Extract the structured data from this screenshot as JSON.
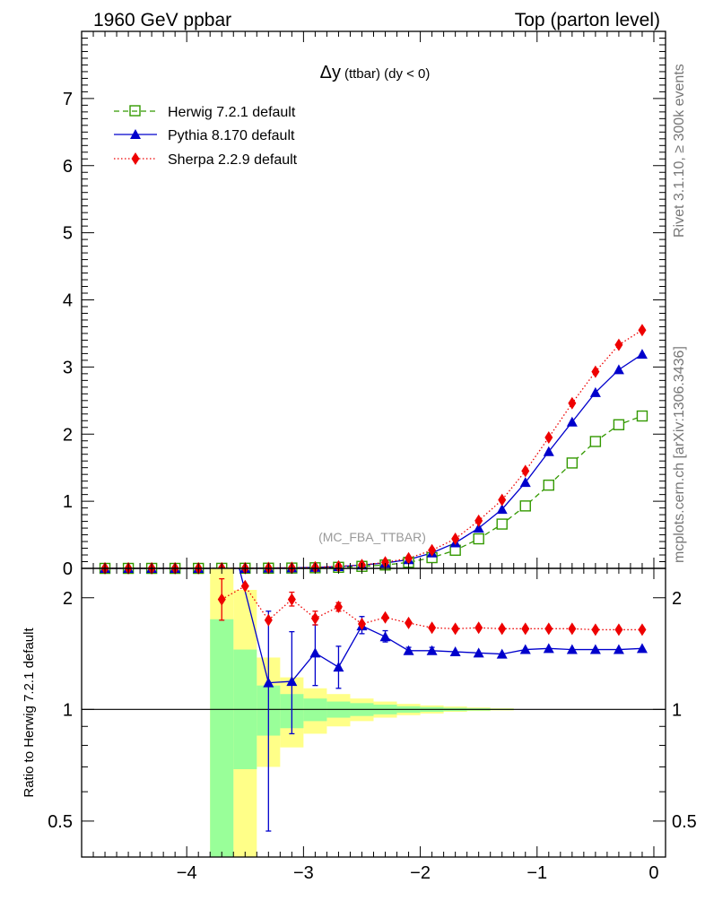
{
  "header": {
    "left": "1960 GeV ppbar",
    "right": "Top (parton level)"
  },
  "side_labels": {
    "rivet": "Rivet 3.1.10, ≥ 300k events",
    "mcplots": "mcplots.cern.ch [arXiv:1306.3436]"
  },
  "chart_data": [
    {
      "type": "line",
      "panel": "main",
      "title": "Δy (ttbar) (dy < 0)",
      "title_main": "Δy",
      "title_sub": "(ttbar) (dy < 0)",
      "watermark": "(MC_FBA_TTBAR)",
      "xlim": [
        -4.9,
        0.1
      ],
      "ylim": [
        0,
        8
      ],
      "ytick_labels": [
        "0",
        "1",
        "2",
        "3",
        "4",
        "5",
        "6",
        "7"
      ],
      "xlabel": "",
      "ylabel": "",
      "legend_position": "top-left",
      "x": [
        -4.7,
        -4.5,
        -4.3,
        -4.1,
        -3.9,
        -3.7,
        -3.5,
        -3.3,
        -3.1,
        -2.9,
        -2.7,
        -2.5,
        -2.3,
        -2.1,
        -1.9,
        -1.7,
        -1.5,
        -1.3,
        -1.1,
        -0.9,
        -0.7,
        -0.5,
        -0.3,
        -0.1
      ],
      "series": [
        {
          "name": "Herwig 7.2.1 default",
          "color": "#339900",
          "marker": "open-square",
          "dash": "dashed",
          "values": [
            0,
            0,
            0,
            0,
            0,
            0.001,
            0.002,
            0.003,
            0.005,
            0.009,
            0.016,
            0.03,
            0.05,
            0.09,
            0.16,
            0.27,
            0.44,
            0.66,
            0.93,
            1.24,
            1.57,
            1.89,
            2.14,
            2.27
          ]
        },
        {
          "name": "Pythia 8.170 default",
          "color": "#0000cc",
          "marker": "filled-triangle",
          "dash": "solid",
          "values": [
            0,
            0,
            0,
            0,
            0,
            0,
            0,
            0.005,
            0.008,
            0.015,
            0.026,
            0.05,
            0.08,
            0.13,
            0.23,
            0.38,
            0.6,
            0.88,
            1.28,
            1.74,
            2.18,
            2.62,
            2.96,
            3.19
          ]
        },
        {
          "name": "Sherpa 2.2.9 default",
          "color": "#ee0000",
          "marker": "filled-diamond",
          "dash": "dotted",
          "values": [
            0.001,
            0.001,
            0.001,
            0.001,
            0.001,
            0.002,
            0.004,
            0.006,
            0.009,
            0.016,
            0.03,
            0.05,
            0.09,
            0.15,
            0.27,
            0.44,
            0.71,
            1.02,
            1.45,
            1.95,
            2.46,
            2.93,
            3.33,
            3.55
          ]
        }
      ]
    },
    {
      "type": "line",
      "panel": "ratio",
      "ylabel": "Ratio to Herwig 7.2.1 default",
      "xlim": [
        -4.9,
        0.1
      ],
      "ylim": [
        0.4,
        2.4
      ],
      "yscale": "log",
      "ytick_labels": [
        "0.5",
        "1",
        "2"
      ],
      "xtick_labels": [
        "−4",
        "−3",
        "−2",
        "−1",
        "0"
      ],
      "reference_line": 1,
      "band_edges": [
        -3.8,
        -3.6,
        -3.4,
        -3.2,
        -3.0,
        -2.8,
        -2.6,
        -2.4,
        -2.2,
        -2.0,
        -1.8,
        -1.6,
        -1.4,
        -1.2
      ],
      "band_inner_lo": [
        0.0,
        0.69,
        0.85,
        0.89,
        0.93,
        0.95,
        0.96,
        0.97,
        0.98,
        0.985,
        0.99,
        0.993,
        0.996
      ],
      "band_inner_hi": [
        1.75,
        1.45,
        1.16,
        1.1,
        1.07,
        1.05,
        1.04,
        1.03,
        1.02,
        1.015,
        1.01,
        1.007,
        1.004
      ],
      "band_outer_lo": [
        0.0,
        0.0,
        0.7,
        0.79,
        0.86,
        0.9,
        0.93,
        0.95,
        0.965,
        0.975,
        0.985,
        0.99,
        0.994
      ],
      "band_outer_hi": [
        2.4,
        2.1,
        1.38,
        1.22,
        1.14,
        1.1,
        1.07,
        1.05,
        1.035,
        1.025,
        1.018,
        1.012,
        1.007
      ],
      "series": [
        {
          "name": "Pythia 8.170 default",
          "color": "#0000cc",
          "marker": "filled-triangle",
          "x": [
            -3.3,
            -3.1,
            -2.9,
            -2.7,
            -2.5,
            -2.3,
            -2.1,
            -1.9,
            -1.7,
            -1.5,
            -1.3,
            -1.1,
            -0.9,
            -0.7,
            -0.5,
            -0.3,
            -0.1
          ],
          "values": [
            1.18,
            1.19,
            1.42,
            1.3,
            1.68,
            1.57,
            1.44,
            1.44,
            1.43,
            1.42,
            1.41,
            1.45,
            1.46,
            1.45,
            1.45,
            1.45,
            1.46
          ],
          "err_lo": [
            0.71,
            0.33,
            0.26,
            0.16,
            0.08,
            0.05,
            0.03,
            0.03,
            0.0,
            0.0,
            0.0,
            0.0,
            0.0,
            0.0,
            0.0,
            0.0,
            0.0
          ],
          "err_hi": [
            0.66,
            0.43,
            0.27,
            0.18,
            0.1,
            0.06,
            0.03,
            0.03,
            0.0,
            0.0,
            0.0,
            0.0,
            0.0,
            0.0,
            0.0,
            0.0,
            0.0
          ],
          "offscale_from": {
            "x": -3.55,
            "y": 2.4
          }
        },
        {
          "name": "Sherpa 2.2.9 default",
          "color": "#ee0000",
          "marker": "filled-diamond",
          "x": [
            -3.7,
            -3.5,
            -3.3,
            -3.1,
            -2.9,
            -2.7,
            -2.5,
            -2.3,
            -2.1,
            -1.9,
            -1.7,
            -1.5,
            -1.3,
            -1.1,
            -0.9,
            -0.7,
            -0.5,
            -0.3,
            -0.1
          ],
          "values": [
            1.98,
            2.15,
            1.74,
            1.98,
            1.76,
            1.89,
            1.7,
            1.77,
            1.71,
            1.66,
            1.65,
            1.66,
            1.65,
            1.65,
            1.65,
            1.65,
            1.64,
            1.64,
            1.64
          ],
          "err_lo": [
            0.24,
            0.0,
            0.0,
            0.08,
            0.07,
            0.05,
            0.0,
            0.0,
            0.0,
            0.0,
            0.0,
            0.0,
            0.0,
            0.0,
            0.0,
            0.0,
            0.0,
            0.0,
            0.0
          ],
          "err_hi": [
            0.27,
            0.0,
            0.0,
            0.09,
            0.08,
            0.05,
            0.0,
            0.0,
            0.0,
            0.0,
            0.0,
            0.0,
            0.0,
            0.0,
            0.0,
            0.0,
            0.0,
            0.0,
            0.0
          ]
        }
      ]
    }
  ]
}
